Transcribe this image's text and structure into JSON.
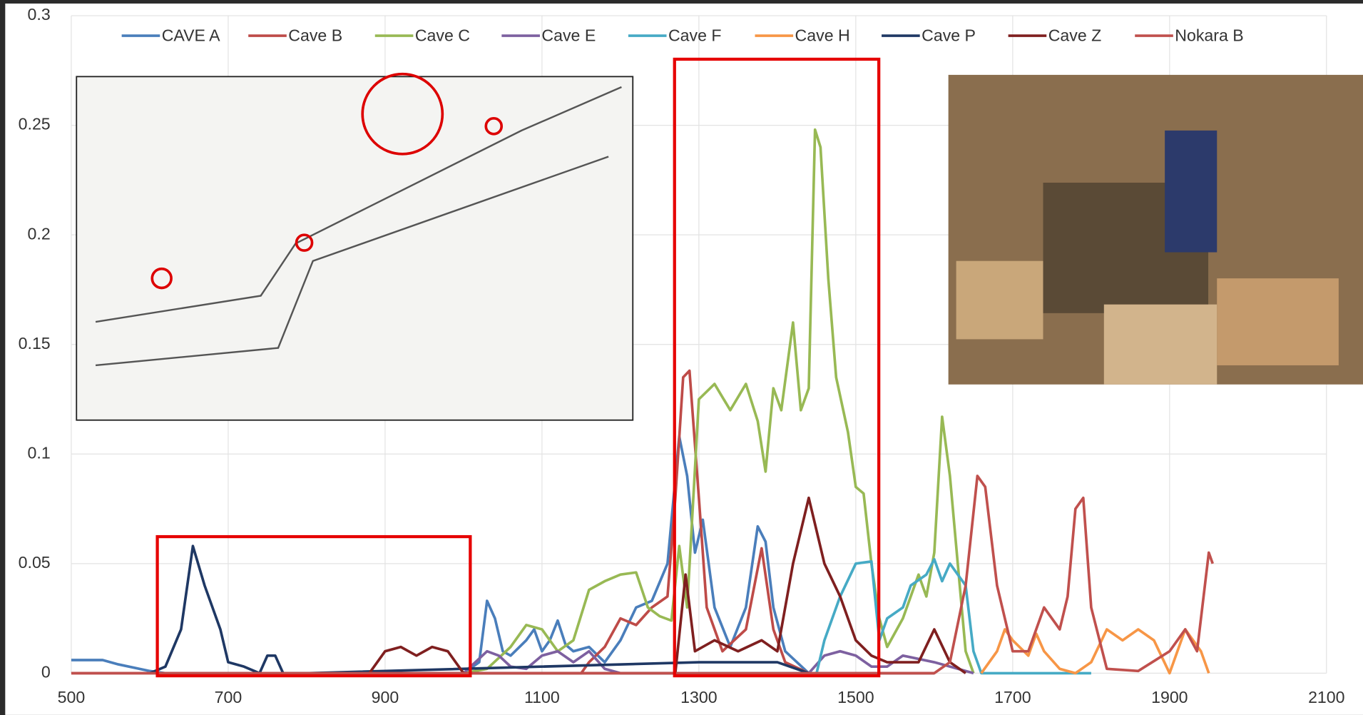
{
  "chart_data": {
    "type": "line",
    "xlim": [
      500,
      2100
    ],
    "xticks": [
      500,
      700,
      900,
      1100,
      1300,
      1500,
      1700,
      1900,
      2100
    ],
    "ylim": [
      0,
      0.3
    ],
    "yticks": [
      0,
      0.05,
      0.1,
      0.15,
      0.2,
      0.25,
      0.3
    ],
    "grid": true,
    "legend": "top",
    "series": [
      {
        "name": "CAVE A",
        "color": "#4a7ebb",
        "x": [
          500,
          540,
          560,
          600,
          620,
          1000,
          1020,
          1030,
          1040,
          1050,
          1060,
          1080,
          1090,
          1100,
          1110,
          1120,
          1130,
          1140,
          1160,
          1180,
          1200,
          1220,
          1240,
          1260,
          1275,
          1285,
          1295,
          1305,
          1320,
          1340,
          1360,
          1375,
          1385,
          1395,
          1410,
          1440,
          1600
        ],
        "values": [
          0.006,
          0.006,
          0.004,
          0.001,
          0,
          0,
          0.005,
          0.033,
          0.025,
          0.01,
          0.008,
          0.015,
          0.02,
          0.01,
          0.015,
          0.024,
          0.013,
          0.01,
          0.012,
          0.005,
          0.015,
          0.03,
          0.033,
          0.05,
          0.108,
          0.09,
          0.055,
          0.07,
          0.03,
          0.012,
          0.03,
          0.067,
          0.06,
          0.03,
          0.01,
          0,
          0
        ]
      },
      {
        "name": "Cave B",
        "color": "#be4b48",
        "x": [
          500,
          1150,
          1160,
          1180,
          1200,
          1220,
          1240,
          1260,
          1270,
          1280,
          1288,
          1300,
          1310,
          1330,
          1360,
          1380,
          1395,
          1410,
          1440,
          1600
        ],
        "values": [
          0,
          0,
          0.005,
          0.012,
          0.025,
          0.022,
          0.03,
          0.035,
          0.08,
          0.135,
          0.138,
          0.08,
          0.03,
          0.01,
          0.02,
          0.057,
          0.02,
          0.005,
          0,
          0
        ]
      },
      {
        "name": "Cave C",
        "color": "#98b954",
        "x": [
          1000,
          1030,
          1060,
          1080,
          1100,
          1120,
          1140,
          1160,
          1180,
          1200,
          1220,
          1235,
          1250,
          1265,
          1275,
          1285,
          1300,
          1320,
          1340,
          1360,
          1375,
          1385,
          1395,
          1405,
          1420,
          1430,
          1440,
          1448,
          1455,
          1465,
          1475,
          1490,
          1500,
          1510,
          1520,
          1530,
          1540,
          1560,
          1580,
          1590,
          1600,
          1610,
          1620,
          1630,
          1640,
          1650
        ],
        "values": [
          0,
          0.002,
          0.012,
          0.022,
          0.02,
          0.01,
          0.015,
          0.038,
          0.042,
          0.045,
          0.046,
          0.03,
          0.026,
          0.024,
          0.058,
          0.03,
          0.125,
          0.132,
          0.12,
          0.132,
          0.115,
          0.092,
          0.13,
          0.12,
          0.16,
          0.12,
          0.13,
          0.248,
          0.24,
          0.18,
          0.135,
          0.11,
          0.085,
          0.082,
          0.05,
          0.025,
          0.012,
          0.025,
          0.045,
          0.035,
          0.055,
          0.117,
          0.09,
          0.05,
          0.01,
          0
        ]
      },
      {
        "name": "Cave E",
        "color": "#7d60a0",
        "x": [
          1000,
          1030,
          1045,
          1060,
          1080,
          1100,
          1120,
          1140,
          1160,
          1180,
          1200,
          1440,
          1460,
          1480,
          1500,
          1520,
          1540,
          1560,
          1600,
          1620,
          1650
        ],
        "values": [
          0,
          0.01,
          0.008,
          0.003,
          0.002,
          0.008,
          0.01,
          0.005,
          0.01,
          0.002,
          0,
          0,
          0.008,
          0.01,
          0.008,
          0.003,
          0.003,
          0.008,
          0.005,
          0.003,
          0
        ]
      },
      {
        "name": "Cave F",
        "color": "#46aac5",
        "x": [
          1300,
          1450,
          1460,
          1480,
          1500,
          1520,
          1530,
          1540,
          1560,
          1570,
          1590,
          1600,
          1610,
          1620,
          1640,
          1650,
          1660,
          1800
        ],
        "values": [
          0,
          0,
          0.015,
          0.035,
          0.05,
          0.051,
          0.015,
          0.025,
          0.03,
          0.04,
          0.045,
          0.052,
          0.042,
          0.05,
          0.04,
          0.01,
          0,
          0
        ]
      },
      {
        "name": "Cave H",
        "color": "#f79646",
        "x": [
          1660,
          1680,
          1690,
          1700,
          1720,
          1730,
          1740,
          1760,
          1780,
          1800,
          1820,
          1840,
          1860,
          1880,
          1900,
          1920,
          1940,
          1950
        ],
        "values": [
          0,
          0.01,
          0.02,
          0.015,
          0.008,
          0.018,
          0.01,
          0.002,
          0,
          0.005,
          0.02,
          0.015,
          0.02,
          0.015,
          0,
          0.02,
          0.01,
          0
        ]
      },
      {
        "name": "Cave P",
        "color": "#1f3864",
        "x": [
          600,
          620,
          640,
          655,
          670,
          690,
          700,
          720,
          740,
          750,
          760,
          770,
          800,
          1300,
          1400,
          1440
        ],
        "values": [
          0,
          0.003,
          0.02,
          0.058,
          0.04,
          0.02,
          0.005,
          0.003,
          0,
          0.008,
          0.008,
          0,
          0,
          0.005,
          0.005,
          0
        ]
      },
      {
        "name": "Cave Z",
        "color": "#7f1f1f",
        "x": [
          880,
          900,
          920,
          940,
          960,
          980,
          1000,
          1270,
          1283,
          1295,
          1320,
          1350,
          1380,
          1400,
          1420,
          1440,
          1460,
          1480,
          1500,
          1520,
          1540,
          1580,
          1600,
          1620,
          1640
        ],
        "values": [
          0,
          0.01,
          0.012,
          0.008,
          0.012,
          0.01,
          0,
          0,
          0.045,
          0.01,
          0.015,
          0.01,
          0.015,
          0.01,
          0.05,
          0.08,
          0.05,
          0.035,
          0.015,
          0.008,
          0.005,
          0.005,
          0.02,
          0.005,
          0
        ]
      },
      {
        "name": "Nokara B",
        "color": "#c0504d",
        "x": [
          500,
          1600,
          1620,
          1640,
          1655,
          1665,
          1680,
          1700,
          1720,
          1740,
          1760,
          1770,
          1780,
          1790,
          1800,
          1820,
          1860,
          1900,
          1920,
          1935,
          1950,
          1955
        ],
        "values": [
          0,
          0,
          0.005,
          0.04,
          0.09,
          0.085,
          0.04,
          0.01,
          0.01,
          0.03,
          0.02,
          0.035,
          0.075,
          0.08,
          0.03,
          0.002,
          0.001,
          0.01,
          0.02,
          0.01,
          0.055,
          0.05
        ]
      }
    ]
  }
}
